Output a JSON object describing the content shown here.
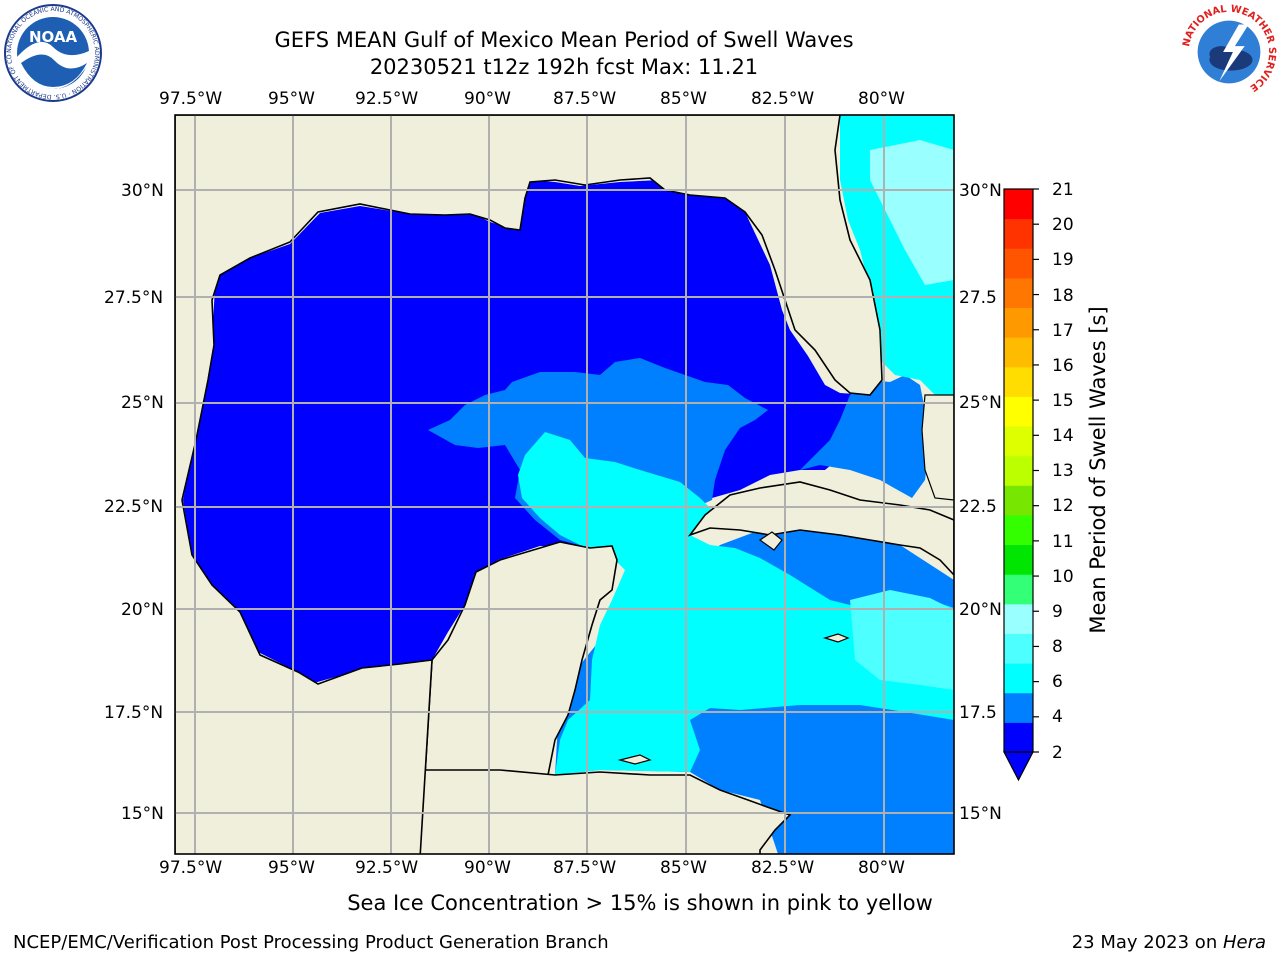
{
  "title": {
    "line1": "GEFS MEAN Gulf of Mexico Mean Period of Swell Waves",
    "line2": "20230521 t12z 192h fcst   Max: 11.21"
  },
  "map": {
    "lon_ticks": [
      "97.5°W",
      "95°W",
      "92.5°W",
      "90°W",
      "87.5°W",
      "85°W",
      "82.5°W",
      "80°W"
    ],
    "lat_ticks": [
      "30°N",
      "27.5°N",
      "25°N",
      "22.5°N",
      "20°N",
      "17.5°N",
      "15°N"
    ],
    "lat_ticks_right": [
      "30°N",
      "27.5",
      "25°N",
      "22.5",
      "20°N",
      "17.5",
      "15°N"
    ],
    "extent": {
      "lon_min": -98,
      "lon_max": -78.2,
      "lat_min": 14,
      "lat_max": 31.8
    },
    "land_color": "#efefdc",
    "coastline_color": "#000000",
    "grid_color": "#b0b0b0"
  },
  "colorbar": {
    "label": "Mean Period of Swell Waves [s]",
    "ticks": [
      "21",
      "20",
      "19",
      "18",
      "17",
      "16",
      "15",
      "14",
      "13",
      "12",
      "11",
      "10",
      "9",
      "8",
      "6",
      "4",
      "2"
    ],
    "extend": "min",
    "colors": [
      "#0000ff",
      "#0080ff",
      "#00ffff",
      "#4dffff",
      "#99ffff",
      "#33ff77",
      "#00e600",
      "#33ff00",
      "#77e600",
      "#bbff00",
      "#ddff00",
      "#ffff00",
      "#ffdd00",
      "#ffbb00",
      "#ff9900",
      "#ff7700",
      "#ff5500",
      "#ff3300",
      "#ff0000"
    ]
  },
  "footer": {
    "sea_ice_note": "Sea Ice Concentration > 15% is shown in pink to yellow",
    "org": "NCEP/EMC/Verification Post Processing Product Generation Branch",
    "date": "23 May 2023 on ",
    "machine": "Hera"
  },
  "logos": {
    "noaa_text": "NOAA",
    "noaa_ring": "NATIONAL OCEANIC AND ATMOSPHERIC ADMINISTRATION · U.S. DEPARTMENT OF COMMERCE",
    "nws_ring": "NATIONAL WEATHER SERVICE"
  }
}
